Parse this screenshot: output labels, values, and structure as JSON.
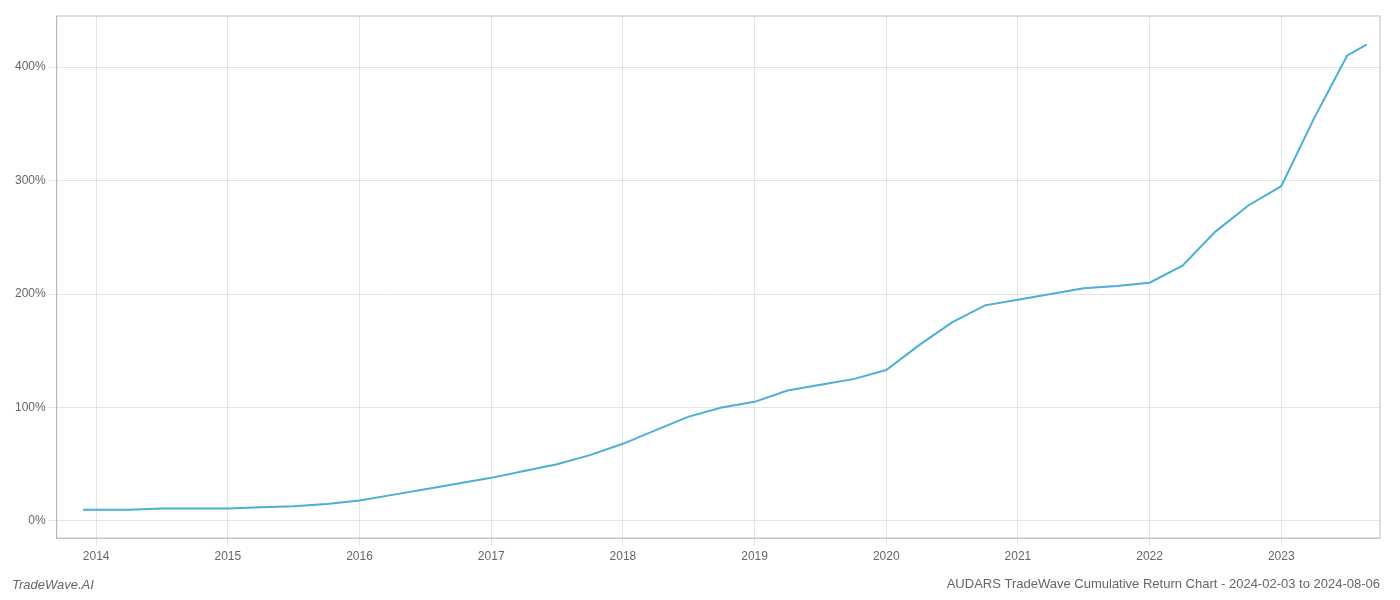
{
  "chart_data": {
    "type": "line",
    "title": "AUDARS TradeWave Cumulative Return Chart - 2024-02-03 to 2024-08-06",
    "annotations": [
      "TradeWave.AI"
    ],
    "color": "#4BAFD6",
    "x": [
      2013.9,
      2014.0,
      2014.25,
      2014.5,
      2014.75,
      2015.0,
      2015.25,
      2015.5,
      2015.75,
      2016.0,
      2016.25,
      2016.5,
      2016.75,
      2017.0,
      2017.25,
      2017.5,
      2017.75,
      2018.0,
      2018.25,
      2018.5,
      2018.75,
      2019.0,
      2019.25,
      2019.5,
      2019.75,
      2020.0,
      2020.25,
      2020.5,
      2020.75,
      2021.0,
      2021.25,
      2021.5,
      2021.75,
      2022.0,
      2022.25,
      2022.5,
      2022.75,
      2023.0,
      2023.25,
      2023.5,
      2023.65
    ],
    "values": [
      10,
      10,
      10,
      11,
      11,
      11,
      12,
      13,
      15,
      18,
      23,
      28,
      33,
      38,
      44,
      50,
      58,
      68,
      80,
      92,
      100,
      105,
      115,
      120,
      125,
      133,
      155,
      175,
      190,
      195,
      200,
      205,
      207,
      210,
      225,
      255,
      278,
      295,
      355,
      410,
      420
    ],
    "xlim": [
      2013.7,
      2023.75
    ],
    "xticks": [
      2014,
      2015,
      2016,
      2017,
      2018,
      2019,
      2020,
      2021,
      2022,
      2023
    ],
    "ylim": [
      -15,
      445
    ],
    "yticks": [
      {
        "value": 0,
        "label": "0%"
      },
      {
        "value": 100,
        "label": "100%"
      },
      {
        "value": 200,
        "label": "200%"
      },
      {
        "value": 300,
        "label": "300%"
      },
      {
        "value": 400,
        "label": "400%"
      }
    ],
    "grid": true
  }
}
